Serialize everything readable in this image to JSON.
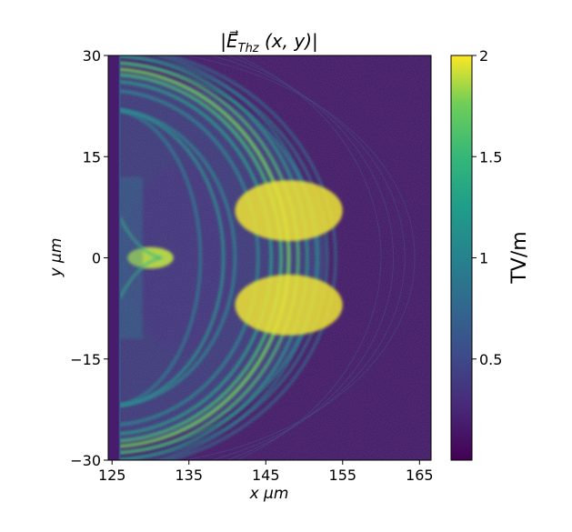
{
  "chart_data": {
    "type": "heatmap",
    "title": "|E⃗_Thz (x, y)|",
    "title_parts": {
      "open": "|",
      "vector": "E⃗",
      "subscript": "Thz",
      "args": " (x, y)",
      "close": "|"
    },
    "xlabel": "x  μm",
    "ylabel": "y  μm",
    "xlim": [
      124.5,
      166.5
    ],
    "ylim": [
      -30,
      30
    ],
    "xticks": [
      125,
      135,
      145,
      155,
      165
    ],
    "yticks": [
      30,
      15,
      0,
      -15,
      -30
    ],
    "ytick_labels": [
      "30",
      "15",
      "0",
      "−15",
      "−30"
    ],
    "colormap": "viridis",
    "colorbar": {
      "label": "TV/m",
      "range": [
        0,
        2
      ],
      "ticks": [
        0.5,
        1,
        1.5,
        2
      ],
      "tick_labels": [
        "0.5",
        "1",
        "1.5",
        "2"
      ]
    },
    "features": [
      {
        "name": "laser-front-boundary",
        "x": 126,
        "y_range": [
          -30,
          30
        ]
      },
      {
        "name": "near-axis-hotspot",
        "x": 130,
        "y": 0,
        "value": 1.5
      },
      {
        "name": "main-thz-shell",
        "x_vertex": 148,
        "y_peak": [
          7,
          -7
        ],
        "value": 2
      },
      {
        "name": "outer-shell",
        "x_vertex": 153,
        "value": 1.1
      },
      {
        "name": "faint-outer-fronts",
        "x_vertex": 160,
        "value": 0.3
      }
    ]
  }
}
